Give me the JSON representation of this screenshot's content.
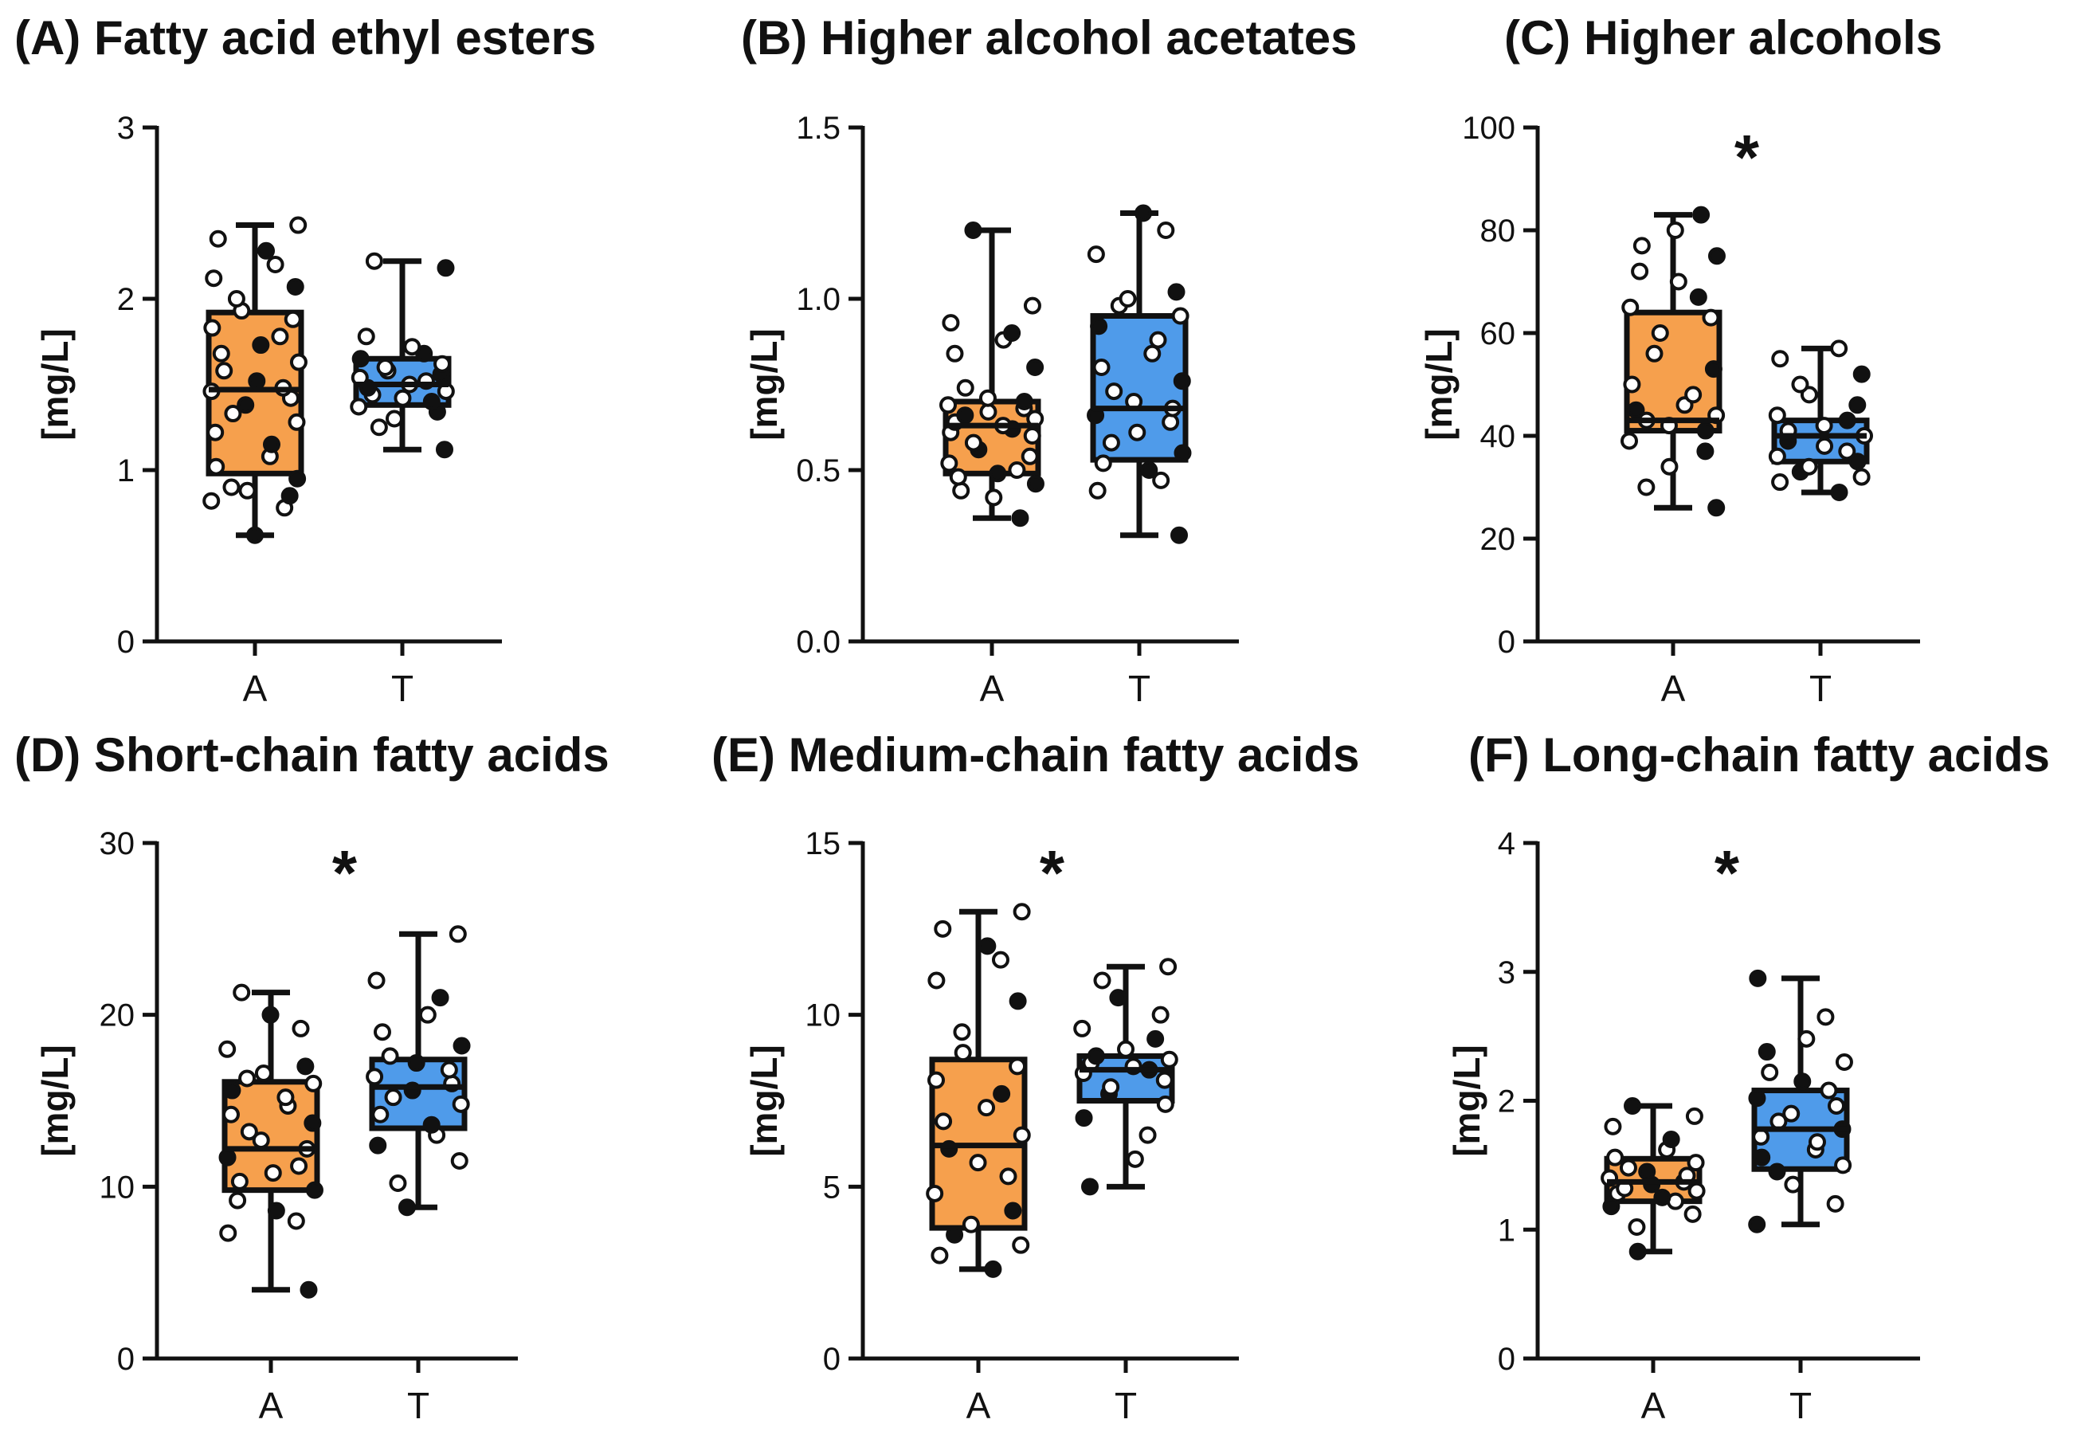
{
  "colors": {
    "A": "#F6A04D",
    "T": "#4F9BEA",
    "ink": "#111111"
  },
  "chart_data": [
    {
      "type": "box",
      "title": "(A) Fatty acid ethyl esters",
      "ylabel": "[mg/L]",
      "ylim": [
        0,
        3
      ],
      "yticks": [
        0,
        1,
        2,
        3
      ],
      "yticklabels": [
        "0",
        "1",
        "2",
        "3"
      ],
      "significance": "",
      "categories": [
        "A",
        "T"
      ],
      "series": [
        {
          "name": "A",
          "min": 0.62,
          "q1": 0.98,
          "median": 1.47,
          "q3": 1.92,
          "max": 2.43,
          "points": [
            0.62,
            0.78,
            0.82,
            0.85,
            0.88,
            0.9,
            0.95,
            1.02,
            1.08,
            1.15,
            1.22,
            1.28,
            1.33,
            1.38,
            1.42,
            1.46,
            1.48,
            1.52,
            1.58,
            1.63,
            1.68,
            1.73,
            1.78,
            1.83,
            1.88,
            1.93,
            2.0,
            2.07,
            2.12,
            2.2,
            2.28,
            2.35,
            2.43
          ]
        },
        {
          "name": "T",
          "min": 1.12,
          "q1": 1.38,
          "median": 1.5,
          "q3": 1.65,
          "max": 2.22,
          "points": [
            1.12,
            1.25,
            1.3,
            1.34,
            1.37,
            1.4,
            1.42,
            1.44,
            1.46,
            1.48,
            1.5,
            1.52,
            1.54,
            1.56,
            1.58,
            1.6,
            1.62,
            1.65,
            1.68,
            1.72,
            1.78,
            2.18,
            2.22
          ]
        }
      ]
    },
    {
      "type": "box",
      "title": "(B) Higher alcohol acetates",
      "ylabel": "[mg/L]",
      "ylim": [
        0,
        1.5
      ],
      "yticks": [
        0,
        0.5,
        1.0,
        1.5
      ],
      "yticklabels": [
        "0.0",
        "0.5",
        "1.0",
        "1.5"
      ],
      "significance": "",
      "categories": [
        "A",
        "T"
      ],
      "series": [
        {
          "name": "A",
          "min": 0.36,
          "q1": 0.49,
          "median": 0.63,
          "q3": 0.7,
          "max": 1.2,
          "points": [
            0.36,
            0.42,
            0.44,
            0.46,
            0.48,
            0.49,
            0.5,
            0.52,
            0.54,
            0.56,
            0.58,
            0.6,
            0.61,
            0.62,
            0.63,
            0.64,
            0.65,
            0.66,
            0.67,
            0.68,
            0.69,
            0.7,
            0.71,
            0.74,
            0.8,
            0.84,
            0.88,
            0.9,
            0.93,
            0.98,
            1.2
          ]
        },
        {
          "name": "T",
          "min": 0.31,
          "q1": 0.53,
          "median": 0.68,
          "q3": 0.95,
          "max": 1.25,
          "points": [
            0.31,
            0.44,
            0.47,
            0.5,
            0.52,
            0.55,
            0.58,
            0.61,
            0.64,
            0.66,
            0.68,
            0.7,
            0.73,
            0.76,
            0.8,
            0.84,
            0.88,
            0.92,
            0.95,
            0.98,
            1.0,
            1.02,
            1.13,
            1.2,
            1.25
          ]
        }
      ]
    },
    {
      "type": "box",
      "title": "(C) Higher alcohols",
      "ylabel": "[mg/L]",
      "ylim": [
        0,
        100
      ],
      "yticks": [
        0,
        20,
        40,
        60,
        80,
        100
      ],
      "yticklabels": [
        "0",
        "20",
        "40",
        "60",
        "80",
        "100"
      ],
      "significance": "*",
      "categories": [
        "A",
        "T"
      ],
      "series": [
        {
          "name": "A",
          "min": 26,
          "q1": 41,
          "median": 43,
          "q3": 64,
          "max": 83,
          "points": [
            26,
            30,
            34,
            37,
            39,
            41,
            42,
            43,
            44,
            45,
            46,
            48,
            50,
            53,
            56,
            60,
            63,
            65,
            67,
            70,
            72,
            75,
            77,
            80,
            83
          ]
        },
        {
          "name": "T",
          "min": 29,
          "q1": 35,
          "median": 40,
          "q3": 43,
          "max": 57,
          "points": [
            29,
            31,
            32,
            33,
            34,
            35,
            36,
            37,
            38,
            39,
            40,
            41,
            42,
            43,
            44,
            46,
            48,
            50,
            52,
            55,
            57
          ]
        }
      ]
    },
    {
      "type": "box",
      "title": "(D) Short-chain fatty acids",
      "ylabel": "[mg/L]",
      "ylim": [
        0,
        30
      ],
      "yticks": [
        0,
        10,
        20,
        30
      ],
      "yticklabels": [
        "0",
        "10",
        "20",
        "30"
      ],
      "significance": "*",
      "categories": [
        "A",
        "T"
      ],
      "series": [
        {
          "name": "A",
          "min": 4,
          "q1": 9.8,
          "median": 12.2,
          "q3": 16.1,
          "max": 21.3,
          "points": [
            4,
            7.3,
            8,
            8.6,
            9.2,
            9.8,
            10.3,
            10.8,
            11.2,
            11.7,
            12.2,
            12.7,
            13.2,
            13.7,
            14.2,
            14.7,
            15.2,
            15.6,
            16.0,
            16.3,
            16.6,
            17.0,
            18.0,
            19.2,
            20.0,
            21.3
          ]
        },
        {
          "name": "T",
          "min": 8.8,
          "q1": 13.4,
          "median": 15.8,
          "q3": 17.4,
          "max": 24.7,
          "points": [
            8.8,
            10.2,
            11.5,
            12.4,
            13.0,
            13.6,
            14.2,
            14.8,
            15.2,
            15.6,
            16.0,
            16.4,
            16.8,
            17.2,
            17.6,
            18.2,
            19.0,
            20.0,
            21.0,
            22.0,
            24.7
          ]
        }
      ]
    },
    {
      "type": "box",
      "title": "(E) Medium-chain fatty acids",
      "ylabel": "[mg/L]",
      "ylim": [
        0,
        15
      ],
      "yticks": [
        0,
        5,
        10,
        15
      ],
      "yticklabels": [
        "0",
        "5",
        "10",
        "15"
      ],
      "significance": "*",
      "categories": [
        "A",
        "T"
      ],
      "series": [
        {
          "name": "A",
          "min": 2.6,
          "q1": 3.8,
          "median": 6.2,
          "q3": 8.7,
          "max": 13.0,
          "points": [
            2.6,
            3.0,
            3.3,
            3.6,
            3.9,
            4.3,
            4.8,
            5.3,
            5.7,
            6.1,
            6.5,
            6.9,
            7.3,
            7.7,
            8.1,
            8.5,
            8.9,
            9.5,
            10.4,
            11.0,
            11.6,
            12.0,
            12.5,
            13.0
          ]
        },
        {
          "name": "T",
          "min": 5.0,
          "q1": 7.5,
          "median": 8.4,
          "q3": 8.8,
          "max": 11.4,
          "points": [
            5.0,
            5.8,
            6.5,
            7.0,
            7.4,
            7.7,
            7.9,
            8.1,
            8.3,
            8.4,
            8.5,
            8.6,
            8.7,
            8.8,
            9.0,
            9.3,
            9.6,
            10.0,
            10.5,
            11.0,
            11.4
          ]
        }
      ]
    },
    {
      "type": "box",
      "title": "(F) Long-chain fatty acids",
      "ylabel": "[mg/L]",
      "ylim": [
        0,
        4
      ],
      "yticks": [
        0,
        1,
        2,
        3,
        4
      ],
      "yticklabels": [
        "0",
        "1",
        "2",
        "3",
        "4"
      ],
      "significance": "*",
      "categories": [
        "A",
        "T"
      ],
      "series": [
        {
          "name": "A",
          "min": 0.83,
          "q1": 1.22,
          "median": 1.37,
          "q3": 1.55,
          "max": 1.96,
          "points": [
            0.83,
            1.02,
            1.12,
            1.18,
            1.22,
            1.25,
            1.28,
            1.3,
            1.32,
            1.35,
            1.37,
            1.4,
            1.42,
            1.45,
            1.48,
            1.52,
            1.56,
            1.62,
            1.7,
            1.8,
            1.88,
            1.96
          ]
        },
        {
          "name": "T",
          "min": 1.04,
          "q1": 1.47,
          "median": 1.78,
          "q3": 2.08,
          "max": 2.95,
          "points": [
            1.04,
            1.2,
            1.35,
            1.45,
            1.5,
            1.56,
            1.62,
            1.68,
            1.72,
            1.78,
            1.84,
            1.9,
            1.96,
            2.02,
            2.08,
            2.15,
            2.22,
            2.3,
            2.38,
            2.48,
            2.65,
            2.95
          ]
        }
      ]
    }
  ]
}
